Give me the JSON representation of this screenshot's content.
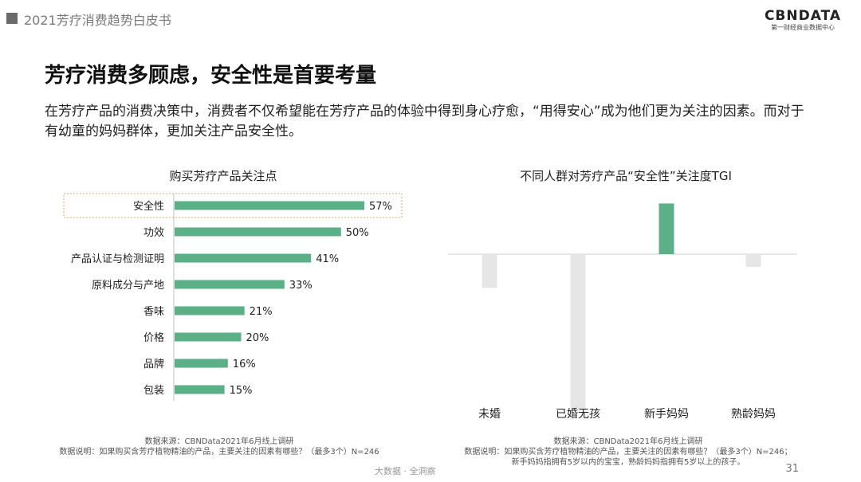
{
  "header": {
    "title": "2021芳疗消费趋势白皮书"
  },
  "brand": {
    "name": "CBNDATA",
    "subtitle": "第一财经商业数据中心"
  },
  "page_title": "芳疗消费多顾虑，安全性是首要考量",
  "intro": "在芳疗产品的消费决策中，消费者不仅希望能在芳疗产品的体验中得到身心疗愈，“用得安心”成为他们更为关注的因素。而对于有幼童的妈妈群体，更加关注产品安全性。",
  "colors": {
    "bar_green": "#5bb088",
    "bar_grey": "#e6e6e6",
    "highlight_border": "#e0a66a"
  },
  "chart_data": [
    {
      "type": "bar",
      "orientation": "horizontal",
      "title": "购买芳疗产品关注点",
      "categories": [
        "安全性",
        "功效",
        "产品认证与检测证明",
        "原料成分与产地",
        "香味",
        "价格",
        "品牌",
        "包装"
      ],
      "values": [
        57,
        50,
        41,
        33,
        21,
        20,
        16,
        15
      ],
      "value_labels": [
        "57%",
        "50%",
        "41%",
        "33%",
        "21%",
        "20%",
        "16%",
        "15%"
      ],
      "highlighted_category": "安全性"
    },
    {
      "type": "bar",
      "title": "不同人群对芳疗产品“安全性”关注度TGI",
      "categories": [
        "未婚",
        "已婚无孩",
        "新手妈妈",
        "熟龄妈妈"
      ],
      "values": [
        92,
        63,
        112,
        97
      ],
      "baseline": 100,
      "highlighted_category": "新手妈妈"
    }
  ],
  "sources": {
    "left": [
      "数据来源：CBNData2021年6月线上调研",
      "数据说明：如果购买含芳疗植物精油的产品，主要关注的因素有哪些？（最多3个）N=246"
    ],
    "right": [
      "数据来源：CBNData2021年6月线上调研",
      "数据说明：如果购买含芳疗植物精油的产品，主要关注的因素有哪些？（最多3个）N=246；",
      "新手妈妈指拥有5岁以内的宝宝，熟龄妈妈指拥有5岁以上的孩子。"
    ]
  },
  "footer": {
    "text": "大数据 · 全洞察",
    "page_number": "31"
  }
}
